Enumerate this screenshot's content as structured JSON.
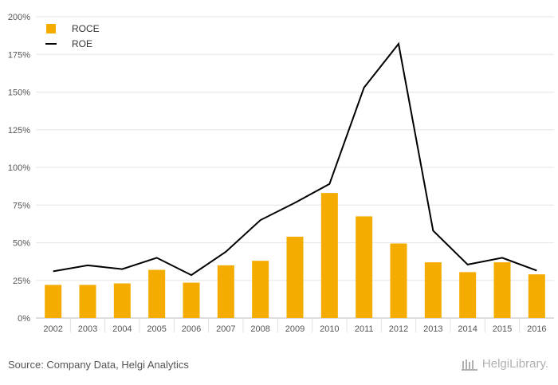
{
  "chart_data": {
    "type": "bar",
    "categories": [
      "2002",
      "2003",
      "2004",
      "2005",
      "2006",
      "2007",
      "2008",
      "2009",
      "2010",
      "2011",
      "2012",
      "2013",
      "2014",
      "2015",
      "2016"
    ],
    "series": [
      {
        "name": "ROCE",
        "kind": "bar",
        "color": "#f5ac00",
        "values": [
          22,
          22,
          23,
          32,
          23.5,
          35,
          38,
          54,
          83,
          67.5,
          49.5,
          37,
          30.5,
          37,
          29
        ]
      },
      {
        "name": "ROE",
        "kind": "line",
        "color": "#000000",
        "values": [
          31,
          35,
          32.5,
          40,
          28.5,
          44,
          65,
          76.5,
          89,
          153,
          182,
          58,
          35.5,
          40,
          31.5
        ]
      }
    ],
    "yticks": [
      "0%",
      "25%",
      "50%",
      "75%",
      "100%",
      "125%",
      "150%",
      "175%",
      "200%"
    ],
    "ylim": [
      0,
      200
    ],
    "grid": true,
    "legend_position": "top-left"
  },
  "footer": {
    "source": "Source: Company Data, Helgi Analytics",
    "brand": "HelgiLibrary."
  }
}
